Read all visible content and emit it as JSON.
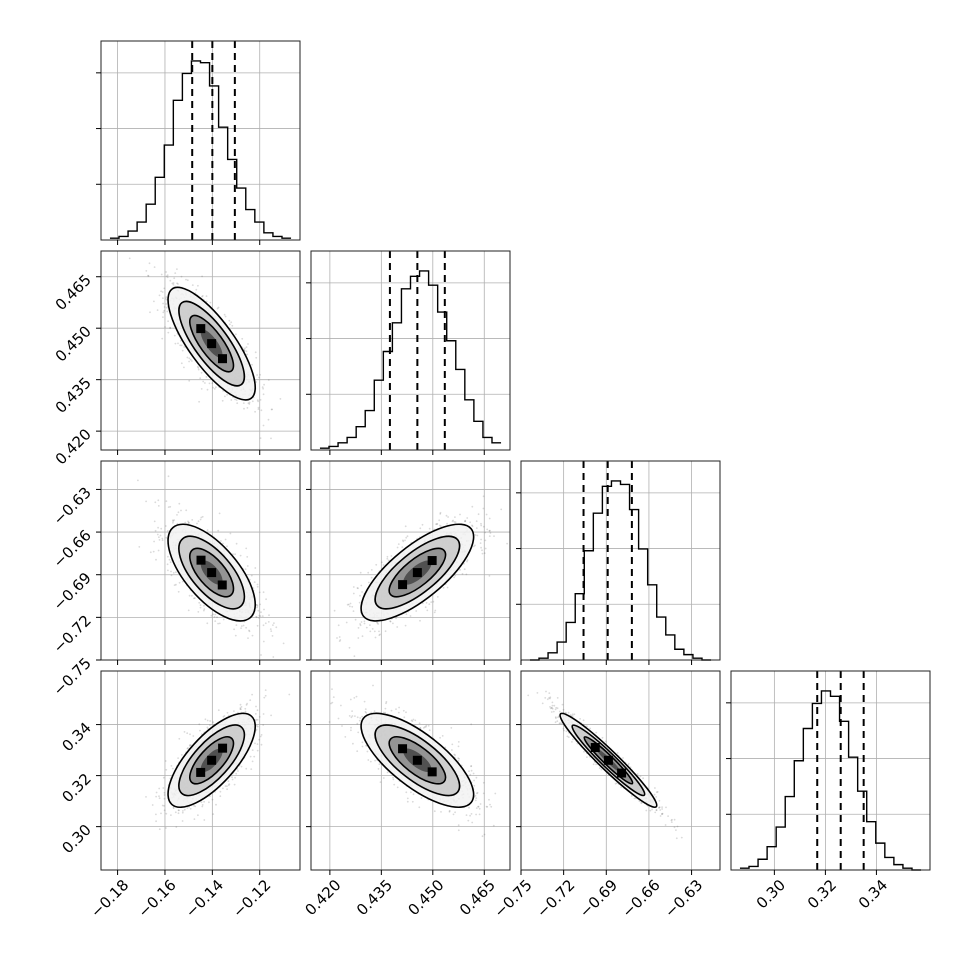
{
  "chart_data": {
    "type": "corner",
    "parameters": [
      {
        "ticks": [
          -0.18,
          -0.16,
          -0.14,
          -0.12
        ],
        "tick_labels": [
          "−0.18",
          "−0.16",
          "−0.14",
          "−0.12"
        ],
        "range": [
          -0.187,
          -0.103
        ],
        "median": -0.14,
        "q16": -0.1485,
        "q84": -0.1305
      },
      {
        "ticks": [
          0.42,
          0.435,
          0.45,
          0.465
        ],
        "tick_labels": [
          "0.420",
          "0.435",
          "0.450",
          "0.465"
        ],
        "range": [
          0.4145,
          0.4725
        ],
        "median": 0.4455,
        "q16": 0.4375,
        "q84": 0.4535
      },
      {
        "ticks": [
          -0.75,
          -0.72,
          -0.69,
          -0.66,
          -0.63
        ],
        "tick_labels": [
          "−0.75",
          "−0.72",
          "−0.69",
          "−0.66",
          "−0.63"
        ],
        "range": [
          -0.75,
          -0.61
        ],
        "median": -0.689,
        "q16": -0.706,
        "q84": -0.672
      },
      {
        "ticks": [
          0.3,
          0.32,
          0.34
        ],
        "tick_labels": [
          "0.30",
          "0.32",
          "0.34"
        ],
        "range": [
          0.283,
          0.361
        ],
        "median": 0.326,
        "q16": 0.3168,
        "q84": 0.335
      }
    ],
    "histograms": [
      {
        "counts": [
          0.01,
          0.02,
          0.05,
          0.1,
          0.2,
          0.35,
          0.53,
          0.78,
          0.93,
          1.0,
          0.99,
          0.86,
          0.63,
          0.45,
          0.29,
          0.17,
          0.1,
          0.04,
          0.02,
          0.01
        ]
      },
      {
        "counts": [
          0.01,
          0.02,
          0.04,
          0.07,
          0.13,
          0.22,
          0.39,
          0.55,
          0.71,
          0.9,
          0.97,
          1.0,
          0.92,
          0.77,
          0.61,
          0.45,
          0.28,
          0.16,
          0.07,
          0.04
        ]
      },
      {
        "counts": [
          0.0,
          0.01,
          0.04,
          0.1,
          0.21,
          0.37,
          0.61,
          0.82,
          0.97,
          1.0,
          0.98,
          0.84,
          0.62,
          0.42,
          0.24,
          0.14,
          0.06,
          0.03,
          0.01,
          0.0
        ]
      },
      {
        "counts": [
          0.01,
          0.02,
          0.06,
          0.13,
          0.24,
          0.41,
          0.61,
          0.79,
          0.93,
          1.0,
          0.97,
          0.83,
          0.63,
          0.44,
          0.27,
          0.15,
          0.07,
          0.03,
          0.01,
          0.0
        ]
      }
    ],
    "pairs": [
      {
        "row": 1,
        "col": 0,
        "center": [
          -0.1403,
          0.4455
        ],
        "sigma": [
          0.0092,
          0.0082
        ],
        "corr": -0.78
      },
      {
        "row": 2,
        "col": 0,
        "center": [
          -0.1403,
          -0.6885
        ],
        "sigma": [
          0.0092,
          0.017
        ],
        "corr": -0.66
      },
      {
        "row": 2,
        "col": 1,
        "center": [
          0.4455,
          -0.6885
        ],
        "sigma": [
          0.0082,
          0.017
        ],
        "corr": 0.74
      },
      {
        "row": 3,
        "col": 0,
        "center": [
          -0.1403,
          0.326
        ],
        "sigma": [
          0.0092,
          0.0092
        ],
        "corr": 0.72
      },
      {
        "row": 3,
        "col": 1,
        "center": [
          0.4455,
          0.326
        ],
        "sigma": [
          0.0082,
          0.0092
        ],
        "corr": -0.73
      },
      {
        "row": 3,
        "col": 2,
        "center": [
          -0.6885,
          0.326
        ],
        "sigma": [
          0.017,
          0.0092
        ],
        "corr": -0.96
      }
    ],
    "grid": true,
    "contour_levels": [
      0.5,
      1.0,
      1.5,
      2.0
    ]
  }
}
